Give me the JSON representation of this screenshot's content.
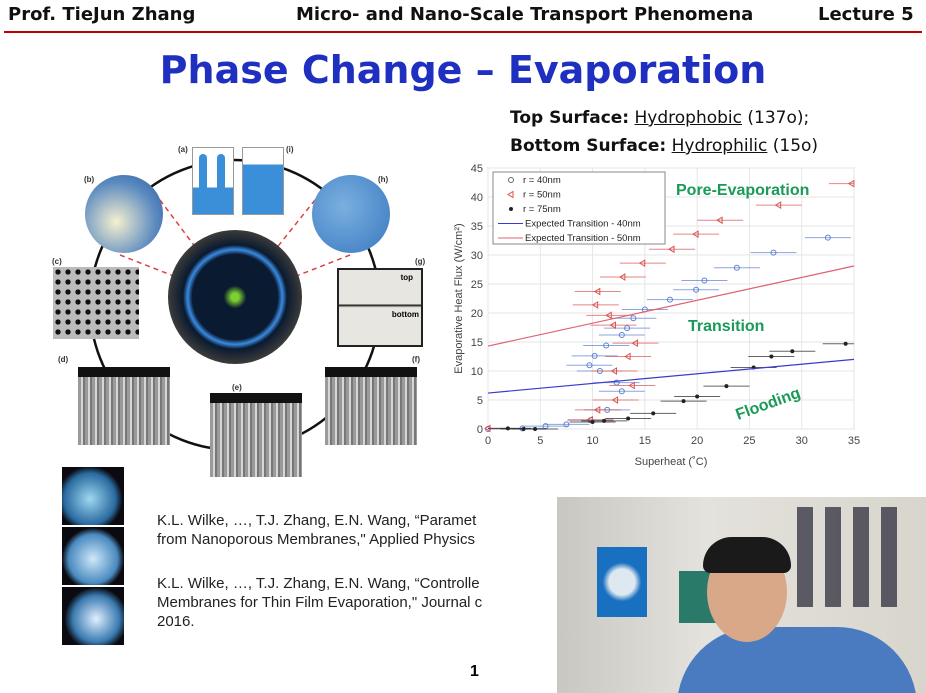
{
  "header": {
    "instructor": "Prof. TieJun Zhang",
    "course": "Micro- and Nano-Scale Transport Phenomena",
    "lecture": "Lecture 5"
  },
  "slide": {
    "title": "Phase Change – Evaporation",
    "top_surface": {
      "label": "Top Surface:",
      "type": "Hydrophobic",
      "angle": "(137o);"
    },
    "bottom_surface": {
      "label": "Bottom Surface:",
      "type": "Hydrophilic",
      "angle": "(15o)"
    },
    "figure_labels": [
      "(a)",
      "(i)",
      "(b)",
      "(h)",
      "(c)",
      "(g)",
      "(d)",
      "(e)",
      "(f)"
    ],
    "droplet_labels": {
      "top": "top",
      "bottom": "bottom"
    },
    "citations": [
      {
        "line1": "K.L. Wilke, …, T.J. Zhang, E.N. Wang, “Paramet",
        "line2": "from Nanoporous Membranes,\" Applied Physics"
      },
      {
        "line1": "K.L. Wilke, …, T.J. Zhang, E.N. Wang, “Controlle",
        "line2": "Membranes for Thin Film Evaporation,\" Journal c",
        "line3": "2016."
      }
    ],
    "page_number": "1"
  },
  "chart_data": {
    "type": "scatter",
    "xlabel": "Superheat (˚C)",
    "ylabel": "Evaporative Heat Flux (W/cm²)",
    "xlim": [
      0,
      35
    ],
    "ylim": [
      0,
      45
    ],
    "xticks": [
      0,
      5,
      10,
      15,
      20,
      25,
      30,
      35
    ],
    "yticks": [
      0,
      5,
      10,
      15,
      20,
      25,
      30,
      35,
      40,
      45
    ],
    "grid": true,
    "legend": "top-left",
    "x_error": 2.2,
    "annotations": [
      "Pore-Evaporation",
      "Transition",
      "Flooding"
    ],
    "series": [
      {
        "name": "r = 40nm",
        "marker": "circle",
        "color": "#5b7fd0",
        "points": [
          [
            32.5,
            33
          ],
          [
            27.3,
            30.4
          ],
          [
            23.8,
            27.8
          ],
          [
            20.7,
            25.6
          ],
          [
            19.9,
            24
          ],
          [
            17.4,
            22.3
          ],
          [
            15,
            20.6
          ],
          [
            13.9,
            19.1
          ],
          [
            13.3,
            17.4
          ],
          [
            12.8,
            16.2
          ],
          [
            11.3,
            14.4
          ],
          [
            10.2,
            12.6
          ],
          [
            9.7,
            11
          ],
          [
            10.7,
            10
          ],
          [
            12.3,
            8
          ],
          [
            12.8,
            6.5
          ],
          [
            11.4,
            3.3
          ],
          [
            9.8,
            1.5
          ],
          [
            7.5,
            0.8
          ],
          [
            5.5,
            0.5
          ],
          [
            3.3,
            0.1
          ],
          [
            0,
            0
          ]
        ]
      },
      {
        "name": "r = 50nm",
        "marker": "triangle-left",
        "color": "#d9534f",
        "points": [
          [
            34.8,
            42.3
          ],
          [
            27.8,
            38.6
          ],
          [
            22.2,
            36
          ],
          [
            19.9,
            33.6
          ],
          [
            17.6,
            31
          ],
          [
            14.8,
            28.6
          ],
          [
            12.9,
            26.2
          ],
          [
            10.5,
            23.7
          ],
          [
            10.3,
            21.4
          ],
          [
            11.6,
            19.6
          ],
          [
            12,
            17.9
          ],
          [
            14.1,
            14.8
          ],
          [
            13.4,
            12.5
          ],
          [
            12.1,
            10
          ],
          [
            13.8,
            7.5
          ],
          [
            12.2,
            5
          ],
          [
            10.5,
            3.3
          ],
          [
            9.8,
            1.6
          ],
          [
            0,
            0.1
          ]
        ]
      },
      {
        "name": "r = 75nm",
        "marker": "dot",
        "color": "#222222",
        "points": [
          [
            34.2,
            14.7
          ],
          [
            29.1,
            13.4
          ],
          [
            27.1,
            12.5
          ],
          [
            25.4,
            10.6
          ],
          [
            22.8,
            7.4
          ],
          [
            20,
            5.6
          ],
          [
            18.7,
            4.8
          ],
          [
            15.8,
            2.7
          ],
          [
            13.4,
            1.8
          ],
          [
            11.1,
            1.4
          ],
          [
            10,
            1.2
          ],
          [
            4.5,
            0
          ],
          [
            3.4,
            0
          ],
          [
            1.9,
            0.1
          ]
        ]
      },
      {
        "name": "Expected Transition - 40nm",
        "marker": "line",
        "color": "#3a3ad0",
        "points": [
          [
            0,
            6.2
          ],
          [
            35,
            12
          ]
        ]
      },
      {
        "name": "Expected Transition - 50nm",
        "marker": "line",
        "color": "#e06070",
        "points": [
          [
            0,
            14.3
          ],
          [
            35,
            28.1
          ]
        ]
      }
    ],
    "annotation_color": "#1a9a5a"
  }
}
